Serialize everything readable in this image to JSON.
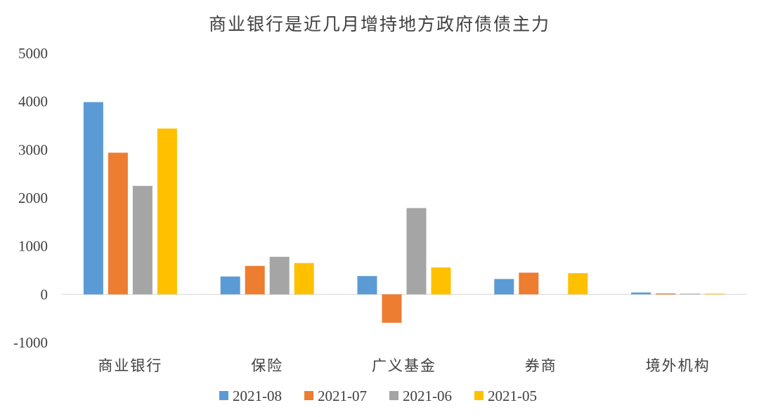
{
  "chart_data": {
    "type": "bar",
    "title": "商业银行是近几月增持地方政府债债主力",
    "xlabel": "",
    "ylabel": "",
    "categories": [
      "商业银行",
      "保险",
      "广义基金",
      "券商",
      "境外机构"
    ],
    "series": [
      {
        "name": "2021-08",
        "color": "#5b9bd5",
        "values": [
          3990,
          370,
          380,
          320,
          40
        ]
      },
      {
        "name": "2021-07",
        "color": "#ed7d31",
        "values": [
          2940,
          590,
          -590,
          450,
          20
        ]
      },
      {
        "name": "2021-06",
        "color": "#a5a5a5",
        "values": [
          2250,
          780,
          1790,
          0,
          15
        ]
      },
      {
        "name": "2021-05",
        "color": "#ffc000",
        "values": [
          3440,
          650,
          560,
          440,
          15
        ]
      }
    ],
    "ylim": [
      -1000,
      5000
    ],
    "yticks": [
      5000,
      4000,
      3000,
      2000,
      1000,
      0,
      -1000
    ],
    "grid": false,
    "legend_position": "bottom"
  }
}
